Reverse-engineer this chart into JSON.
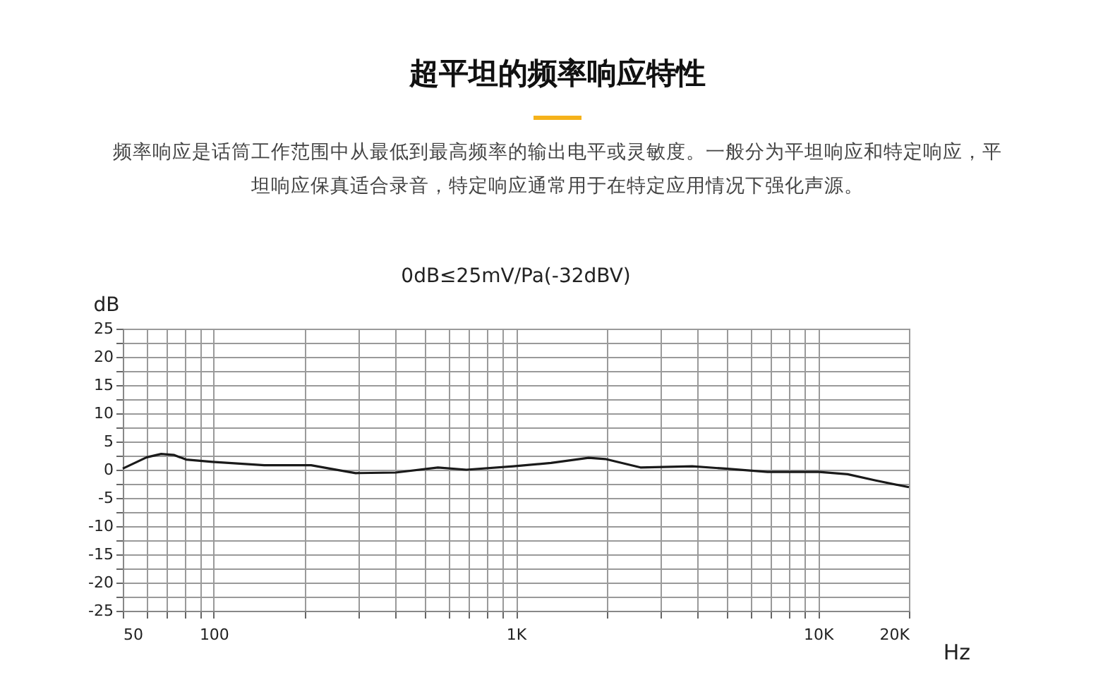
{
  "chart_data": {
    "type": "line",
    "title": "超平坦的频率响应特性",
    "subtitle": "频率响应是话筒工作范围中从最低到最高频率的输出电平或灵敏度。一般分为平坦响应和特定响应，平坦响应保真适合录音，特定响应通常用于在特定应用情况下强化声源。",
    "annotations": [
      "0dB≤25mV/Pa(-32dBV)"
    ],
    "xlabel": "Hz",
    "ylabel": "dB",
    "log": "x",
    "x": [
      50,
      60,
      67,
      74,
      81,
      99,
      147,
      210,
      242,
      295,
      400,
      552,
      686,
      982,
      1307,
      1741,
      1976,
      2584,
      3836,
      4930,
      6808,
      10096,
      12530,
      15530,
      20000
    ],
    "series": [
      {
        "color": "#1a1a1a",
        "values": [
          0.2,
          2.2,
          2.8,
          2.6,
          1.8,
          1.4,
          0.8,
          0.8,
          0.2,
          -0.6,
          -0.5,
          0.4,
          0,
          0.6,
          1.2,
          2.1,
          1.9,
          0.4,
          0.6,
          0.2,
          -0.4,
          -0.4,
          -0.8,
          -1.9,
          -3.1
        ]
      }
    ],
    "xlim": [
      50,
      20000
    ],
    "xticks": [
      50,
      {
        "value": 60,
        "label": null
      },
      {
        "value": 70,
        "label": null
      },
      {
        "value": 80,
        "label": null
      },
      {
        "value": 90,
        "label": null
      },
      100,
      {
        "value": 200,
        "label": null
      },
      {
        "value": 300,
        "label": null
      },
      {
        "value": 400,
        "label": null
      },
      {
        "value": 500,
        "label": null
      },
      {
        "value": 600,
        "label": null
      },
      {
        "value": 700,
        "label": null
      },
      {
        "value": 800,
        "label": null
      },
      {
        "value": 900,
        "label": null
      },
      {
        "value": 1000,
        "label": "1K"
      },
      {
        "value": 2000,
        "label": null
      },
      {
        "value": 3000,
        "label": null
      },
      {
        "value": 4000,
        "label": null
      },
      {
        "value": 5000,
        "label": null
      },
      {
        "value": 6000,
        "label": null
      },
      {
        "value": 7000,
        "label": null
      },
      {
        "value": 8000,
        "label": null
      },
      {
        "value": 9000,
        "label": null
      },
      {
        "value": 10000,
        "label": "10K"
      },
      {
        "value": 20000,
        "label": "20K"
      }
    ],
    "ylim": [
      -25,
      25
    ],
    "yticks": [
      -25,
      {
        "value": -22.5,
        "label": null
      },
      -20,
      {
        "value": -17.5,
        "label": null
      },
      -15,
      {
        "value": -12.5,
        "label": null
      },
      -10,
      {
        "value": -7.5,
        "label": null
      },
      -5,
      {
        "value": -2.5,
        "label": null
      },
      0,
      {
        "value": 2.5,
        "label": null
      },
      5,
      {
        "value": 7.5,
        "label": null
      },
      10,
      {
        "value": 12.5,
        "label": null
      },
      15,
      {
        "value": 17.5,
        "label": null
      },
      20,
      {
        "value": 22.5,
        "label": null
      },
      25
    ],
    "grid": true,
    "legend": false,
    "marker": "none",
    "line_style": "solid"
  }
}
